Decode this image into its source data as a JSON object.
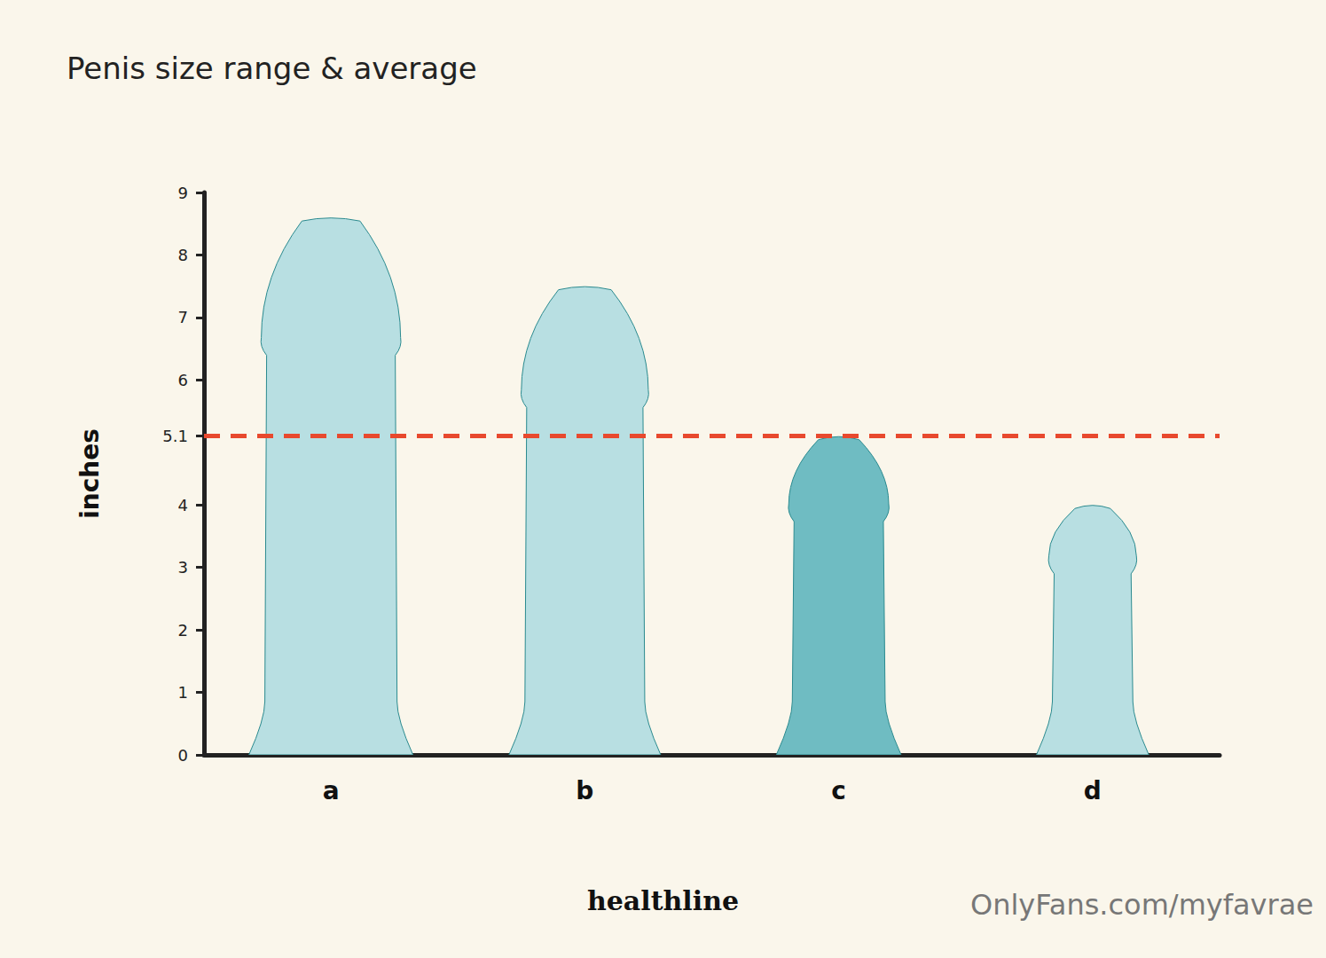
{
  "chart_data": {
    "type": "bar",
    "title": "Penis size range & average",
    "categories": [
      "a",
      "b",
      "c",
      "d"
    ],
    "values": [
      8.6,
      7.5,
      5.1,
      4.0
    ],
    "colors": [
      "#b8dfe2",
      "#b8dfe2",
      "#6fbcc2",
      "#b8dfe2"
    ],
    "y_label": "inches",
    "ylim": [
      0,
      9
    ],
    "yticks": [
      0,
      1,
      2,
      3,
      4,
      5.1,
      6,
      7,
      8,
      9
    ],
    "average": 5.1,
    "source": "healthline",
    "watermark": "OnlyFans.com/myfavrae",
    "grid": false
  }
}
